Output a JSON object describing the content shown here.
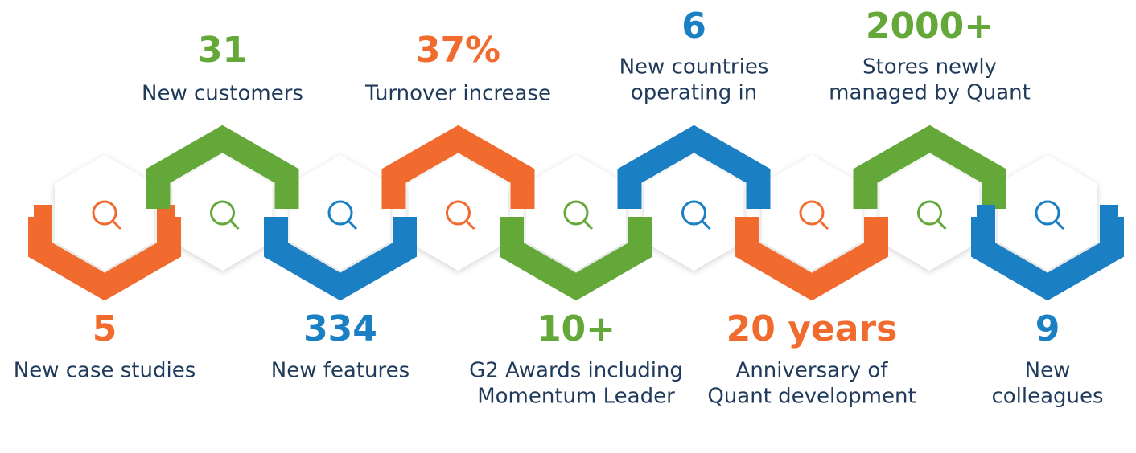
{
  "items": [
    {
      "number": "5",
      "label": [
        "New case studies"
      ]
    },
    {
      "number": "31",
      "label": [
        "New customers"
      ]
    },
    {
      "number": "334",
      "label": [
        "New features"
      ]
    },
    {
      "number": "37%",
      "label": [
        "Turnover increase"
      ]
    },
    {
      "number": "10+",
      "label": [
        "G2 Awards including",
        "Momentum Leader"
      ]
    },
    {
      "number": "6",
      "label": [
        "New countries",
        "operating in"
      ]
    },
    {
      "number": "20 years",
      "label": [
        "Anniversary of",
        "Quant development"
      ]
    },
    {
      "number": "2000+",
      "label": [
        "Stores newly",
        "managed by Quant"
      ]
    },
    {
      "number": "9",
      "label": [
        "New",
        "colleagues"
      ]
    }
  ]
}
